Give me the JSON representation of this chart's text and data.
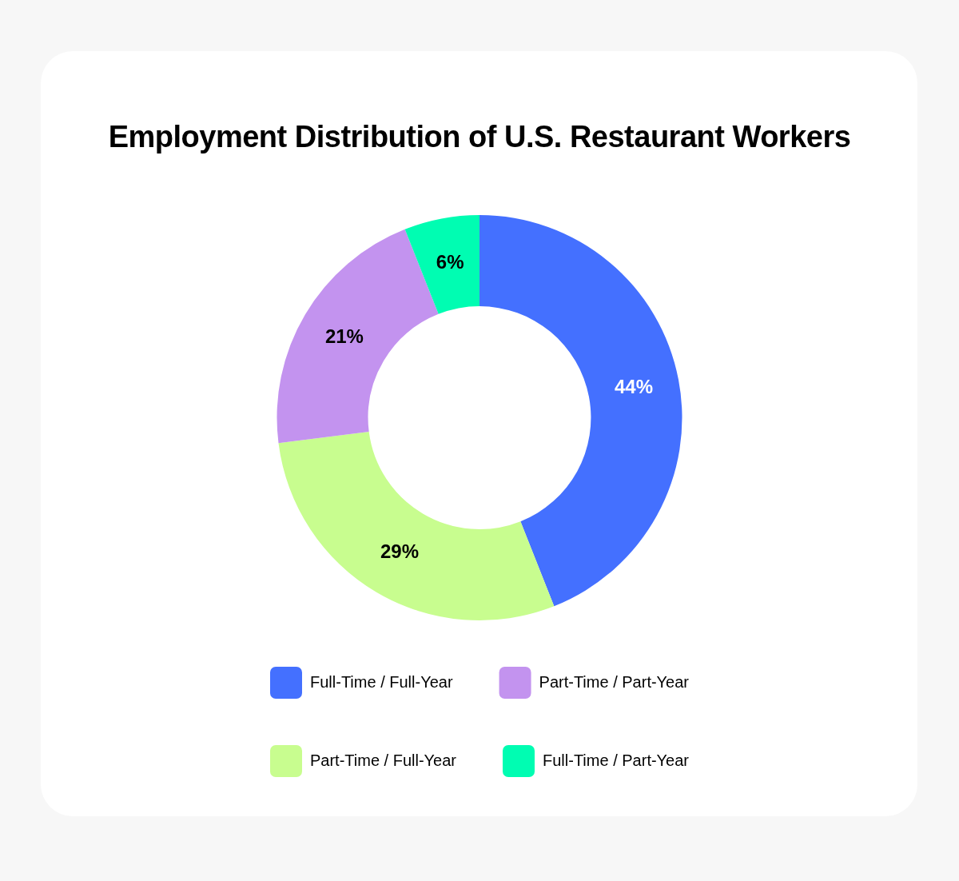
{
  "chart_data": {
    "type": "donut",
    "title": "Employment Distribution of U.S. Restaurant Workers",
    "categories": [
      "Full-Time / Full-Year",
      "Part-Time / Full-Year",
      "Part-Time / Part-Year",
      "Full-Time / Part-Year"
    ],
    "values": [
      44,
      29,
      21,
      6
    ],
    "value_labels": [
      "44%",
      "29%",
      "21%",
      "6%"
    ],
    "colors": [
      "#4470ff",
      "#c8fd8f",
      "#c393ef",
      "#00fdb2"
    ],
    "legend": "bottom"
  }
}
